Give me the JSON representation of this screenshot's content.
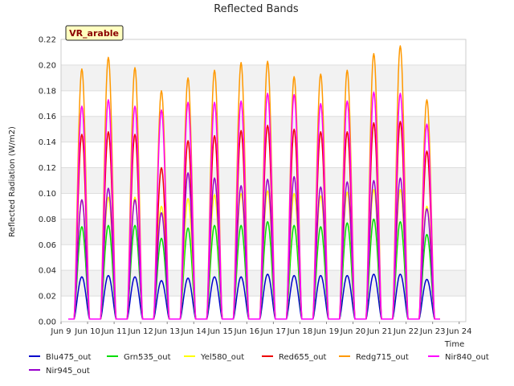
{
  "chart_data": {
    "type": "line",
    "title": "Reflected Bands",
    "ylabel": "Reflected Radiation (W/m2)",
    "xlabel": "Time",
    "site_label": "VR_arable",
    "ylim": [
      0.0,
      0.22
    ],
    "y_ticks": [
      "0.00",
      "0.02",
      "0.04",
      "0.06",
      "0.08",
      "0.10",
      "0.12",
      "0.14",
      "0.16",
      "0.18",
      "0.20",
      "0.22"
    ],
    "x_ticks": [
      "Jun 9",
      "Jun 10",
      "Jun 11",
      "Jun 12",
      "Jun 13",
      "Jun 14",
      "Jun 15",
      "Jun 16",
      "Jun 17",
      "Jun 18",
      "Jun 19",
      "Jun 20",
      "Jun 21",
      "Jun 22",
      "Jun 23",
      "Jun 24"
    ],
    "grid": true,
    "legend_position": "bottom",
    "days": [
      "Jun 9",
      "Jun 10",
      "Jun 11",
      "Jun 12",
      "Jun 13",
      "Jun 14",
      "Jun 15",
      "Jun 16",
      "Jun 17",
      "Jun 18",
      "Jun 19",
      "Jun 20",
      "Jun 21",
      "Jun 22"
    ],
    "series": [
      {
        "name": "Blu475_out",
        "color": "#0000cc",
        "daily_peaks": [
          0.035,
          0.036,
          0.035,
          0.032,
          0.034,
          0.035,
          0.035,
          0.037,
          0.036,
          0.036,
          0.036,
          0.037,
          0.037,
          0.033
        ]
      },
      {
        "name": "Grn535_out",
        "color": "#00dd00",
        "daily_peaks": [
          0.074,
          0.075,
          0.075,
          0.065,
          0.073,
          0.075,
          0.075,
          0.078,
          0.075,
          0.074,
          0.077,
          0.08,
          0.078,
          0.068
        ]
      },
      {
        "name": "Yel580_out",
        "color": "#ffff00",
        "daily_peaks": [
          0.095,
          0.097,
          0.097,
          0.09,
          0.096,
          0.099,
          0.1,
          0.102,
          0.1,
          0.098,
          0.101,
          0.103,
          0.103,
          0.09
        ]
      },
      {
        "name": "Red655_out",
        "color": "#ee0000",
        "daily_peaks": [
          0.146,
          0.148,
          0.146,
          0.12,
          0.141,
          0.145,
          0.149,
          0.153,
          0.15,
          0.148,
          0.148,
          0.155,
          0.156,
          0.133
        ]
      },
      {
        "name": "Redg715_out",
        "color": "#ff9900",
        "daily_peaks": [
          0.197,
          0.206,
          0.198,
          0.18,
          0.19,
          0.196,
          0.202,
          0.203,
          0.191,
          0.193,
          0.196,
          0.209,
          0.215,
          0.173
        ]
      },
      {
        "name": "Nir840_out",
        "color": "#ff00ff",
        "daily_peaks": [
          0.168,
          0.173,
          0.168,
          0.165,
          0.171,
          0.171,
          0.172,
          0.178,
          0.177,
          0.17,
          0.172,
          0.179,
          0.178,
          0.154
        ]
      },
      {
        "name": "Nir945_out",
        "color": "#9900cc",
        "daily_peaks": [
          0.095,
          0.104,
          0.095,
          0.085,
          0.116,
          0.112,
          0.106,
          0.111,
          0.113,
          0.105,
          0.109,
          0.11,
          0.112,
          0.088
        ]
      }
    ]
  }
}
